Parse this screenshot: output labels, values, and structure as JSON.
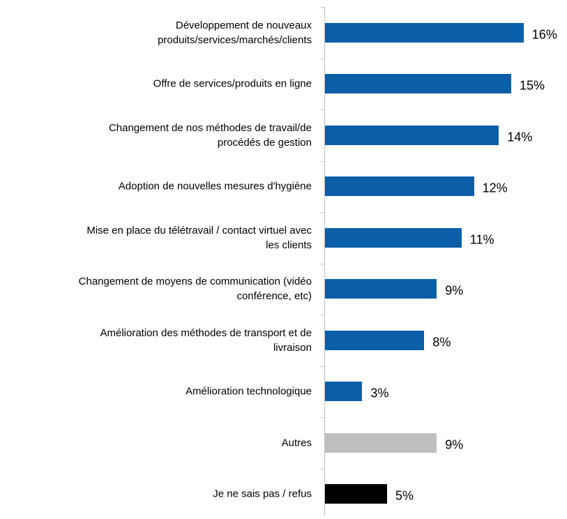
{
  "chart_data": {
    "type": "bar",
    "orientation": "horizontal",
    "categories": [
      "Développement de nouveaux\nproduits/services/marchés/clients",
      "Offre de services/produits en ligne",
      "Changement de nos méthodes de travail/de\nprocédés de gestion",
      "Adoption de nouvelles mesures d'hygiène",
      "Mise en place du télétravail / contact virtuel avec\nles clients",
      "Changement de moyens de communication (vidéo\nconférence, etc)",
      "Amélioration des méthodes de transport et de\nlivraison",
      "Amélioration technologique",
      "Autres",
      "Je ne sais pas / refus"
    ],
    "values": [
      16,
      15,
      14,
      12,
      11,
      9,
      8,
      3,
      9,
      5
    ],
    "value_labels": [
      "16%",
      "15%",
      "14%",
      "12%",
      "11%",
      "9%",
      "8%",
      "3%",
      "9%",
      "5%"
    ],
    "colors": [
      "#0b5ea8",
      "#0b5ea8",
      "#0b5ea8",
      "#0b5ea8",
      "#0b5ea8",
      "#0b5ea8",
      "#0b5ea8",
      "#0b5ea8",
      "#bfbfbf",
      "#000000"
    ]
  }
}
